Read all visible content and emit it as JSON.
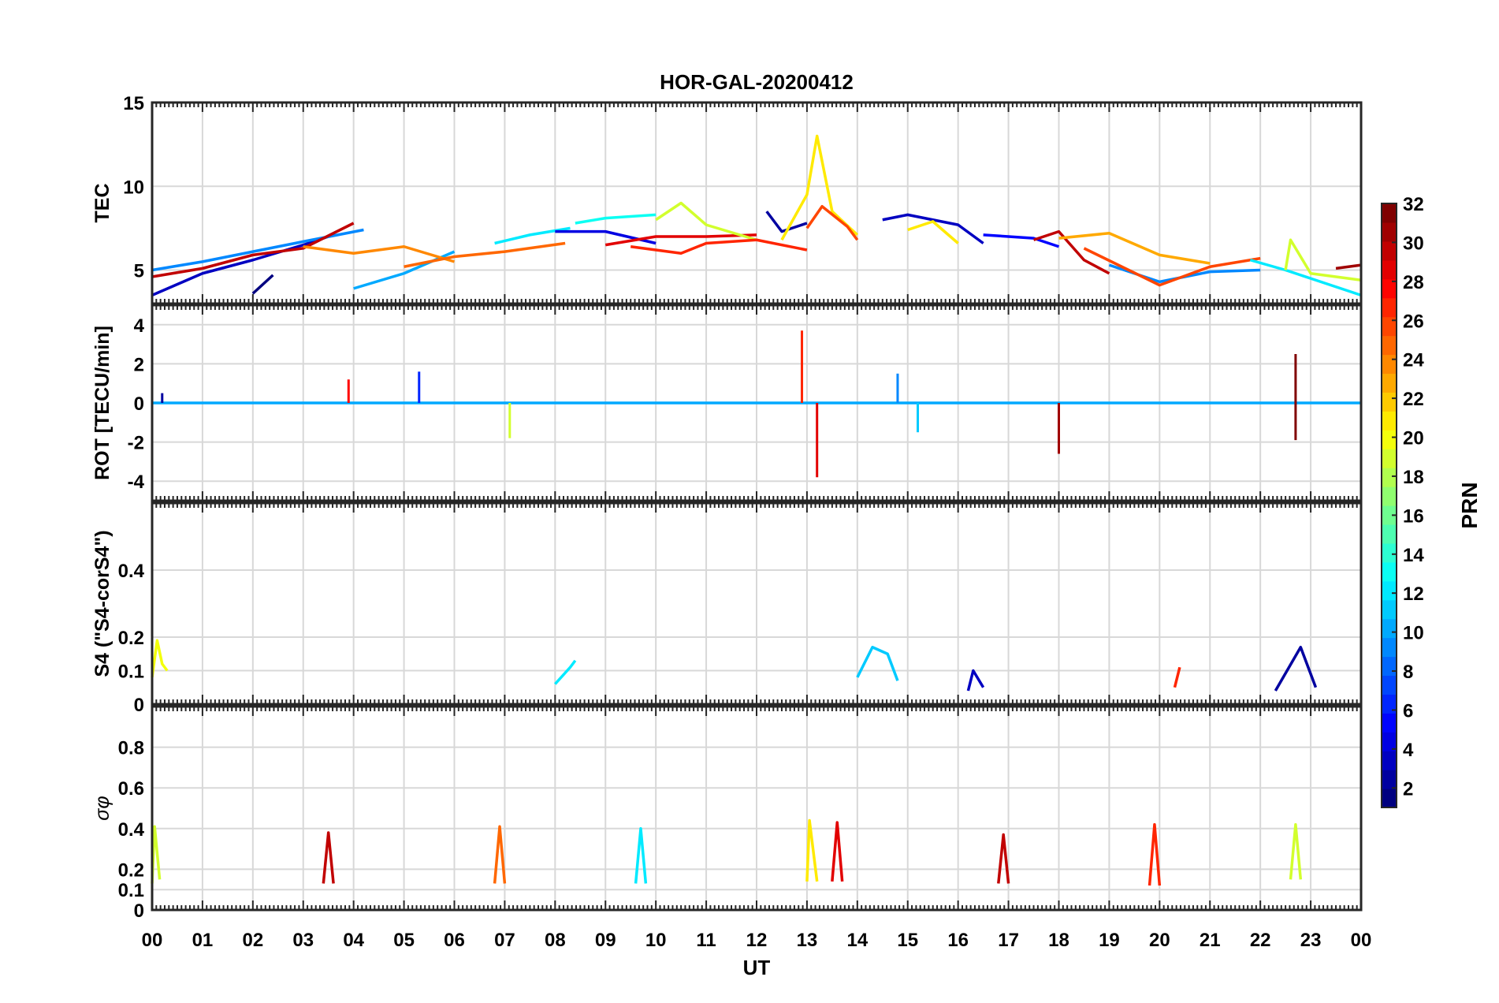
{
  "figure": {
    "title": "HOR-GAL-20200412",
    "xlabel": "UT",
    "x_tick_labels": [
      "00",
      "01",
      "02",
      "03",
      "04",
      "05",
      "06",
      "07",
      "08",
      "09",
      "10",
      "11",
      "12",
      "13",
      "14",
      "15",
      "16",
      "17",
      "18",
      "19",
      "20",
      "21",
      "22",
      "23",
      "00"
    ]
  },
  "colorbar": {
    "label": "PRN",
    "range": [
      1,
      32
    ],
    "tick_labels": [
      "2",
      "4",
      "6",
      "8",
      "10",
      "12",
      "14",
      "16",
      "18",
      "20",
      "22",
      "24",
      "26",
      "28",
      "30",
      "32"
    ],
    "colormap": "jet",
    "low_color": "#00008f",
    "high_color": "#800000"
  },
  "chart_data": [
    {
      "type": "line",
      "panel": "TEC",
      "ylabel": "TEC",
      "x_unit": "UT hours",
      "xlim": [
        0,
        24
      ],
      "ylim": [
        3,
        15
      ],
      "yticks": [
        "5",
        "10",
        "15"
      ],
      "grid": true,
      "series": [
        {
          "prn": 3,
          "x": [
            0,
            1,
            2,
            3,
            3.6
          ],
          "y": [
            3.5,
            4.8,
            5.6,
            6.5,
            7.1
          ]
        },
        {
          "prn": 9,
          "x": [
            0,
            1,
            2,
            3,
            4.2
          ],
          "y": [
            5.0,
            5.5,
            6.1,
            6.7,
            7.4
          ]
        },
        {
          "prn": 30,
          "x": [
            0,
            1,
            2,
            3,
            4
          ],
          "y": [
            4.6,
            5.1,
            5.9,
            6.3,
            7.8
          ]
        },
        {
          "prn": 1,
          "x": [
            2,
            2.4
          ],
          "y": [
            3.6,
            4.7
          ]
        },
        {
          "prn": 10,
          "x": [
            4,
            5,
            6
          ],
          "y": [
            3.9,
            4.8,
            6.1
          ]
        },
        {
          "prn": 24,
          "x": [
            3,
            4,
            5,
            6
          ],
          "y": [
            6.4,
            6.0,
            6.4,
            5.5
          ]
        },
        {
          "prn": 12,
          "x": [
            6.8,
            7.5,
            8.3
          ],
          "y": [
            6.6,
            7.1,
            7.5
          ]
        },
        {
          "prn": 25,
          "x": [
            5,
            6,
            7,
            8.2
          ],
          "y": [
            5.2,
            5.8,
            6.1,
            6.6
          ]
        },
        {
          "prn": 13,
          "x": [
            8.4,
            9,
            10
          ],
          "y": [
            7.8,
            8.1,
            8.3
          ]
        },
        {
          "prn": 4,
          "x": [
            8,
            9,
            10
          ],
          "y": [
            7.3,
            7.3,
            6.6
          ]
        },
        {
          "prn": 29,
          "x": [
            9,
            10,
            11,
            12
          ],
          "y": [
            6.5,
            7.0,
            7.0,
            7.1
          ]
        },
        {
          "prn": 19,
          "x": [
            10,
            10.5,
            11,
            12
          ],
          "y": [
            8.0,
            9.0,
            7.7,
            6.8
          ]
        },
        {
          "prn": 27,
          "x": [
            9.5,
            10.5,
            11,
            12,
            13
          ],
          "y": [
            6.4,
            6.0,
            6.6,
            6.8,
            6.2
          ]
        },
        {
          "prn": 2,
          "x": [
            12.2,
            12.5,
            13
          ],
          "y": [
            8.5,
            7.3,
            7.8
          ]
        },
        {
          "prn": 21,
          "x": [
            12.5,
            13,
            13.2,
            13.5,
            14
          ],
          "y": [
            6.8,
            9.5,
            13.0,
            8.5,
            7.1
          ]
        },
        {
          "prn": 26,
          "x": [
            13,
            13.3,
            13.8,
            14
          ],
          "y": [
            7.5,
            8.8,
            7.6,
            6.8
          ]
        },
        {
          "prn": 3,
          "x": [
            14.5,
            15,
            16,
            16.5
          ],
          "y": [
            8.0,
            8.3,
            7.7,
            6.6
          ]
        },
        {
          "prn": 21,
          "x": [
            15,
            15.5,
            16
          ],
          "y": [
            7.4,
            7.9,
            6.6
          ]
        },
        {
          "prn": 5,
          "x": [
            16.5,
            17,
            17.5,
            18
          ],
          "y": [
            7.1,
            7.0,
            6.9,
            6.4
          ]
        },
        {
          "prn": 30,
          "x": [
            17.5,
            18,
            18.5,
            19
          ],
          "y": [
            6.8,
            7.3,
            5.6,
            4.8
          ]
        },
        {
          "prn": 23,
          "x": [
            18,
            19,
            20,
            21
          ],
          "y": [
            6.9,
            7.2,
            5.9,
            5.4
          ]
        },
        {
          "prn": 9,
          "x": [
            19,
            20,
            21,
            22
          ],
          "y": [
            5.3,
            4.3,
            4.9,
            5.0
          ]
        },
        {
          "prn": 26,
          "x": [
            18.5,
            20,
            21,
            22
          ],
          "y": [
            6.3,
            4.1,
            5.2,
            5.7
          ]
        },
        {
          "prn": 12,
          "x": [
            21.8,
            22.5,
            23,
            24
          ],
          "y": [
            5.6,
            5.0,
            4.5,
            3.5
          ]
        },
        {
          "prn": 19,
          "x": [
            22.5,
            22.6,
            23,
            24
          ],
          "y": [
            5.0,
            6.8,
            4.8,
            4.4
          ]
        },
        {
          "prn": 31,
          "x": [
            23.5,
            24
          ],
          "y": [
            5.1,
            5.3
          ]
        }
      ]
    },
    {
      "type": "line",
      "panel": "ROT",
      "ylabel": "ROT [TECU/min]",
      "x_unit": "UT hours",
      "xlim": [
        0,
        24
      ],
      "ylim": [
        -5,
        5
      ],
      "yticks": [
        "-4",
        "-2",
        "0",
        "2",
        "4"
      ],
      "grid": true,
      "series": [
        {
          "prn": 10,
          "x": [
            0,
            4,
            8,
            12,
            16,
            20,
            24
          ],
          "y": [
            0,
            0,
            0,
            0,
            0,
            0,
            0
          ],
          "note_bursts": [
            [
              0.2,
              0.5
            ],
            [
              3.9,
              1.2
            ],
            [
              5.3,
              1.6
            ],
            [
              7.1,
              -1.8
            ],
            [
              12.9,
              3.7
            ],
            [
              13.2,
              -3.8
            ],
            [
              14.8,
              1.5
            ],
            [
              15.2,
              -1.5
            ],
            [
              18.0,
              -2.6
            ],
            [
              22.7,
              2.5
            ],
            [
              22.7,
              -1.9
            ]
          ]
        }
      ]
    },
    {
      "type": "line",
      "panel": "S4",
      "ylabel": "S4 (\"S4-corS4\")",
      "x_unit": "UT hours",
      "xlim": [
        0,
        24
      ],
      "ylim": [
        0,
        0.6
      ],
      "yticks": [
        "0",
        "0.1",
        "0.2",
        "0.4"
      ],
      "grid": true,
      "series": [
        {
          "prn": 20,
          "x": [
            0,
            0.1,
            0.2,
            0.3
          ],
          "y": [
            0.08,
            0.19,
            0.12,
            0.1
          ]
        },
        {
          "prn": 12,
          "x": [
            8.0,
            8.3,
            8.4
          ],
          "y": [
            0.06,
            0.11,
            0.13
          ]
        },
        {
          "prn": 11,
          "x": [
            14.0,
            14.3,
            14.6,
            14.8
          ],
          "y": [
            0.08,
            0.17,
            0.15,
            0.07
          ]
        },
        {
          "prn": 3,
          "x": [
            16.2,
            16.3,
            16.5
          ],
          "y": [
            0.04,
            0.1,
            0.05
          ]
        },
        {
          "prn": 27,
          "x": [
            20.3,
            20.4
          ],
          "y": [
            0.05,
            0.11
          ]
        },
        {
          "prn": 2,
          "x": [
            22.3,
            22.8,
            23.1
          ],
          "y": [
            0.04,
            0.17,
            0.05
          ]
        }
      ]
    },
    {
      "type": "line",
      "panel": "sigma_phi",
      "ylabel": "σφ",
      "x_unit": "UT hours",
      "xlim": [
        0,
        24
      ],
      "ylim": [
        0,
        1
      ],
      "yticks": [
        "0",
        "0.1",
        "0.2",
        "0.4",
        "0.6",
        "0.8"
      ],
      "grid": true,
      "series": [
        {
          "prn": 19,
          "x": [
            0,
            0.05,
            0.15
          ],
          "y": [
            0.13,
            0.41,
            0.15
          ]
        },
        {
          "prn": 30,
          "x": [
            3.4,
            3.5,
            3.6
          ],
          "y": [
            0.13,
            0.38,
            0.13
          ]
        },
        {
          "prn": 25,
          "x": [
            6.8,
            6.9,
            7.0
          ],
          "y": [
            0.13,
            0.41,
            0.13
          ]
        },
        {
          "prn": 12,
          "x": [
            9.6,
            9.7,
            9.8
          ],
          "y": [
            0.13,
            0.4,
            0.13
          ]
        },
        {
          "prn": 21,
          "x": [
            13.0,
            13.05,
            13.2
          ],
          "y": [
            0.14,
            0.44,
            0.14
          ]
        },
        {
          "prn": 29,
          "x": [
            13.5,
            13.6,
            13.7
          ],
          "y": [
            0.14,
            0.43,
            0.14
          ]
        },
        {
          "prn": 30,
          "x": [
            16.8,
            16.9,
            17.0
          ],
          "y": [
            0.13,
            0.37,
            0.13
          ]
        },
        {
          "prn": 27,
          "x": [
            19.8,
            19.9,
            20.0
          ],
          "y": [
            0.12,
            0.42,
            0.12
          ]
        },
        {
          "prn": 19,
          "x": [
            22.6,
            22.7,
            22.8
          ],
          "y": [
            0.15,
            0.42,
            0.15
          ]
        }
      ]
    }
  ]
}
